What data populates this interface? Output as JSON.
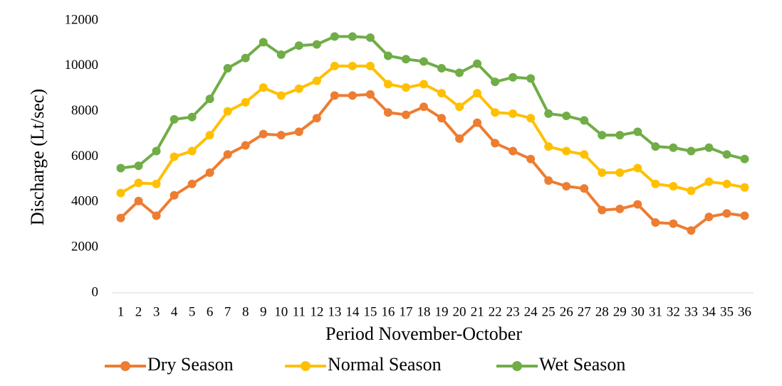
{
  "chart_data": {
    "type": "line",
    "x_label": "Period November-October",
    "y_label": "Discharge (Lt/sec)",
    "categories": [
      "1",
      "2",
      "3",
      "4",
      "5",
      "6",
      "7",
      "8",
      "9",
      "10",
      "11",
      "12",
      "13",
      "14",
      "15",
      "16",
      "17",
      "18",
      "19",
      "20",
      "21",
      "22",
      "23",
      "24",
      "25",
      "26",
      "27",
      "28",
      "29",
      "30",
      "31",
      "32",
      "33",
      "34",
      "35",
      "36"
    ],
    "series": [
      {
        "name": "Dry Season",
        "color": "#ED7D31",
        "values": [
          3300,
          4050,
          3400,
          4300,
          4800,
          5300,
          6100,
          6500,
          7000,
          6950,
          7100,
          7700,
          8700,
          8700,
          8750,
          7950,
          7850,
          8200,
          7700,
          6800,
          7500,
          6600,
          6250,
          5900,
          4950,
          4700,
          4600,
          3650,
          3700,
          3900,
          3100,
          3050,
          2750,
          3350,
          3500,
          3400
        ]
      },
      {
        "name": "Normal Season",
        "color": "#FFC000",
        "values": [
          4400,
          4850,
          4800,
          6000,
          6250,
          6950,
          8000,
          8400,
          9050,
          8700,
          9000,
          9350,
          10000,
          10000,
          10000,
          9200,
          9050,
          9200,
          8800,
          8200,
          8800,
          7950,
          7900,
          7700,
          6450,
          6250,
          6100,
          5300,
          5300,
          5500,
          4800,
          4700,
          4500,
          4900,
          4800,
          4650
        ]
      },
      {
        "name": "Wet Season",
        "color": "#70AD47",
        "values": [
          5500,
          5600,
          6250,
          7650,
          7750,
          8550,
          9900,
          10350,
          11050,
          10500,
          10900,
          10950,
          11300,
          11300,
          11250,
          10450,
          10300,
          10200,
          9900,
          9700,
          10100,
          9300,
          9500,
          9450,
          7900,
          7800,
          7600,
          6950,
          6950,
          7100,
          6450,
          6400,
          6250,
          6400,
          6100,
          5900
        ]
      }
    ],
    "ylim": [
      0,
      12000
    ],
    "yticks": [
      0,
      2000,
      4000,
      6000,
      8000,
      10000,
      12000
    ],
    "legend": "bottom"
  }
}
